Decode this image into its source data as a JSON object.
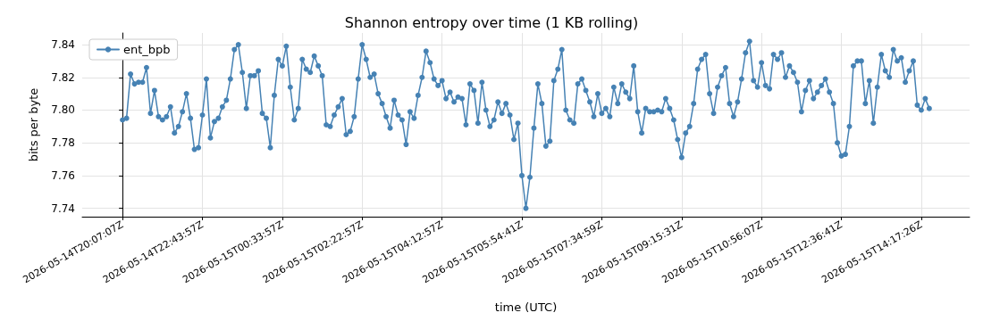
{
  "chart_data": {
    "type": "line",
    "title": "Shannon entropy over time (1 KB rolling)",
    "xlabel": "time (UTC)",
    "ylabel": "bits per byte",
    "categories": [
      "2026-05-14T20:07:07Z",
      null,
      null,
      null,
      null,
      null,
      null,
      null,
      null,
      null,
      null,
      null,
      null,
      null,
      null,
      null,
      null,
      null,
      null,
      null,
      "2026-05-14T22:43:57Z",
      null,
      null,
      null,
      null,
      null,
      null,
      null,
      null,
      null,
      null,
      null,
      null,
      null,
      null,
      null,
      null,
      null,
      null,
      null,
      "2026-05-15T00:33:57Z",
      null,
      null,
      null,
      null,
      null,
      null,
      null,
      null,
      null,
      null,
      null,
      null,
      null,
      null,
      null,
      null,
      null,
      null,
      null,
      "2026-05-15T02:22:57Z",
      null,
      null,
      null,
      null,
      null,
      null,
      null,
      null,
      null,
      null,
      null,
      null,
      null,
      null,
      null,
      null,
      null,
      null,
      null,
      "2026-05-15T04:12:57Z",
      null,
      null,
      null,
      null,
      null,
      null,
      null,
      null,
      null,
      null,
      null,
      null,
      null,
      null,
      null,
      null,
      null,
      null,
      null,
      "2026-05-15T05:54:41Z",
      null,
      null,
      null,
      null,
      null,
      null,
      null,
      null,
      null,
      null,
      null,
      null,
      null,
      null,
      null,
      null,
      null,
      null,
      null,
      "2026-05-15T07:34:59Z",
      null,
      null,
      null,
      null,
      null,
      null,
      null,
      null,
      null,
      null,
      null,
      null,
      null,
      null,
      null,
      null,
      null,
      null,
      null,
      "2026-05-15T09:15:31Z",
      null,
      null,
      null,
      null,
      null,
      null,
      null,
      null,
      null,
      null,
      null,
      null,
      null,
      null,
      null,
      null,
      null,
      null,
      null,
      "2026-05-15T10:56:07Z",
      null,
      null,
      null,
      null,
      null,
      null,
      null,
      null,
      null,
      null,
      null,
      null,
      null,
      null,
      null,
      null,
      null,
      null,
      null,
      "2026-05-15T12:36:41Z",
      null,
      null,
      null,
      null,
      null,
      null,
      null,
      null,
      null,
      null,
      null,
      null,
      null,
      null,
      null,
      null,
      null,
      null,
      null,
      "2026-05-15T14:17:26Z",
      null,
      null
    ],
    "series": [
      {
        "name": "ent_bpb",
        "color": "#4682b4",
        "values": [
          7.794,
          7.795,
          7.822,
          7.816,
          7.817,
          7.817,
          7.826,
          7.798,
          7.812,
          7.796,
          7.794,
          7.796,
          7.802,
          7.786,
          7.79,
          7.799,
          7.81,
          7.795,
          7.776,
          7.777,
          7.797,
          7.819,
          7.783,
          7.793,
          7.795,
          7.802,
          7.806,
          7.819,
          7.837,
          7.84,
          7.823,
          7.801,
          7.821,
          7.821,
          7.824,
          7.798,
          7.795,
          7.777,
          7.809,
          7.831,
          7.827,
          7.839,
          7.814,
          7.794,
          7.801,
          7.831,
          7.825,
          7.823,
          7.833,
          7.827,
          7.821,
          7.791,
          7.79,
          7.797,
          7.802,
          7.807,
          7.785,
          7.787,
          7.796,
          7.819,
          7.84,
          7.831,
          7.82,
          7.822,
          7.81,
          7.804,
          7.796,
          7.789,
          7.806,
          7.797,
          7.794,
          7.779,
          7.799,
          7.795,
          7.809,
          7.82,
          7.836,
          7.829,
          7.819,
          7.815,
          7.818,
          7.807,
          7.811,
          7.805,
          7.808,
          7.807,
          7.791,
          7.816,
          7.812,
          7.792,
          7.817,
          7.8,
          7.79,
          7.794,
          7.805,
          7.798,
          7.804,
          7.797,
          7.782,
          7.792,
          7.76,
          7.74,
          7.759,
          7.789,
          7.816,
          7.804,
          7.778,
          7.781,
          7.818,
          7.825,
          7.837,
          7.8,
          7.794,
          7.792,
          7.816,
          7.819,
          7.812,
          7.805,
          7.796,
          7.81,
          7.798,
          7.801,
          7.796,
          7.814,
          7.804,
          7.816,
          7.811,
          7.807,
          7.827,
          7.799,
          7.786,
          7.801,
          7.799,
          7.799,
          7.8,
          7.799,
          7.807,
          7.801,
          7.794,
          7.782,
          7.771,
          7.786,
          7.79,
          7.804,
          7.825,
          7.831,
          7.834,
          7.81,
          7.798,
          7.814,
          7.821,
          7.826,
          7.804,
          7.796,
          7.805,
          7.819,
          7.835,
          7.842,
          7.818,
          7.814,
          7.829,
          7.815,
          7.813,
          7.834,
          7.831,
          7.835,
          7.82,
          7.827,
          7.823,
          7.817,
          7.799,
          7.812,
          7.818,
          7.807,
          7.811,
          7.815,
          7.819,
          7.811,
          7.804,
          7.78,
          7.772,
          7.773,
          7.79,
          7.827,
          7.83,
          7.83,
          7.804,
          7.818,
          7.792,
          7.814,
          7.834,
          7.824,
          7.82,
          7.837,
          7.83,
          7.832,
          7.817,
          7.824,
          7.83,
          7.803,
          7.8,
          7.807,
          7.801
        ]
      }
    ],
    "ylim": [
      7.7349,
      7.8471
    ],
    "yticks": [
      7.74,
      7.76,
      7.78,
      {
        "value": 7.8,
        "label": "7.80"
      },
      7.82,
      7.84
    ],
    "grid": true,
    "legend": "top left",
    "marker": "circle",
    "line_style": "solid"
  }
}
